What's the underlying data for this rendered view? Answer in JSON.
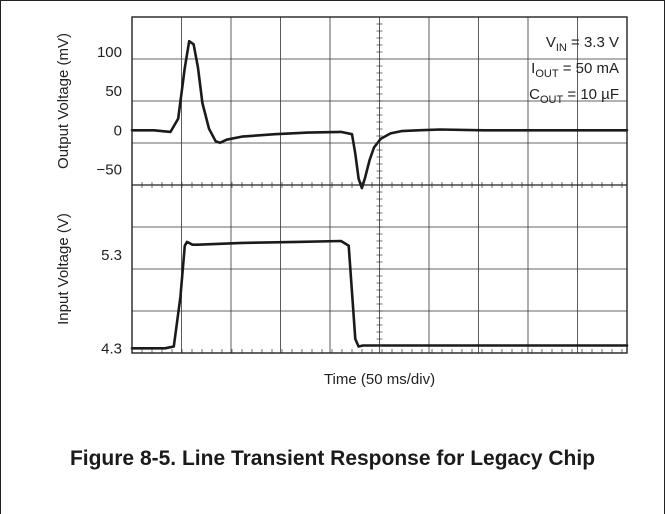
{
  "chart_data": [
    {
      "type": "line",
      "ylabel": "Output Voltage (mV)",
      "ylim": [
        -70,
        145
      ],
      "yticks": [
        {
          "v": 100,
          "label": "100"
        },
        {
          "v": 50,
          "label": "50"
        },
        {
          "v": 0,
          "label": "0"
        },
        {
          "v": -50,
          "label": "−50"
        }
      ],
      "annotations": [
        {
          "main": "V",
          "sub": "IN",
          "rest": " = 3.3 V"
        },
        {
          "main": "I",
          "sub": "OUT",
          "rest": " = 50 mA"
        },
        {
          "main": "C",
          "sub": "OUT",
          "rest": " = 10 µF"
        }
      ],
      "series": [
        {
          "x": [
            0,
            20,
            35,
            42,
            48,
            52,
            56,
            60,
            64,
            70,
            76,
            80,
            86,
            100,
            130,
            160,
            190,
            200,
            203,
            206,
            209,
            212,
            216,
            220,
            226,
            235,
            245,
            260,
            280,
            320,
            360,
            400,
            450
          ],
          "y": [
            0,
            0,
            -2,
            15,
            80,
            114,
            110,
            80,
            35,
            2,
            -14,
            -16,
            -12,
            -8,
            -5,
            -3,
            -2,
            -5,
            -30,
            -62,
            -74,
            -60,
            -38,
            -22,
            -11,
            -4,
            -1,
            0,
            1,
            0,
            0,
            0,
            0
          ]
        }
      ]
    },
    {
      "type": "line",
      "ylabel": "Input Voltage (V)",
      "ylim": [
        4.25,
        6.05
      ],
      "yticks": [
        {
          "v": 5.3,
          "label": "5.3"
        },
        {
          "v": 4.3,
          "label": "4.3"
        }
      ],
      "series": [
        {
          "x": [
            0,
            30,
            38,
            44,
            48,
            50,
            55,
            60,
            100,
            150,
            190,
            197,
            200,
            203,
            206,
            210,
            260,
            350,
            450
          ],
          "y": [
            4.3,
            4.3,
            4.32,
            4.85,
            5.4,
            5.44,
            5.41,
            5.41,
            5.43,
            5.44,
            5.45,
            5.4,
            4.9,
            4.4,
            4.32,
            4.33,
            4.33,
            4.33,
            4.33
          ]
        }
      ]
    }
  ],
  "xlabel": "Time (50 ms/div)",
  "xlim": [
    0,
    450
  ],
  "caption": "Figure 8-5. Line Transient Response for Legacy Chip"
}
